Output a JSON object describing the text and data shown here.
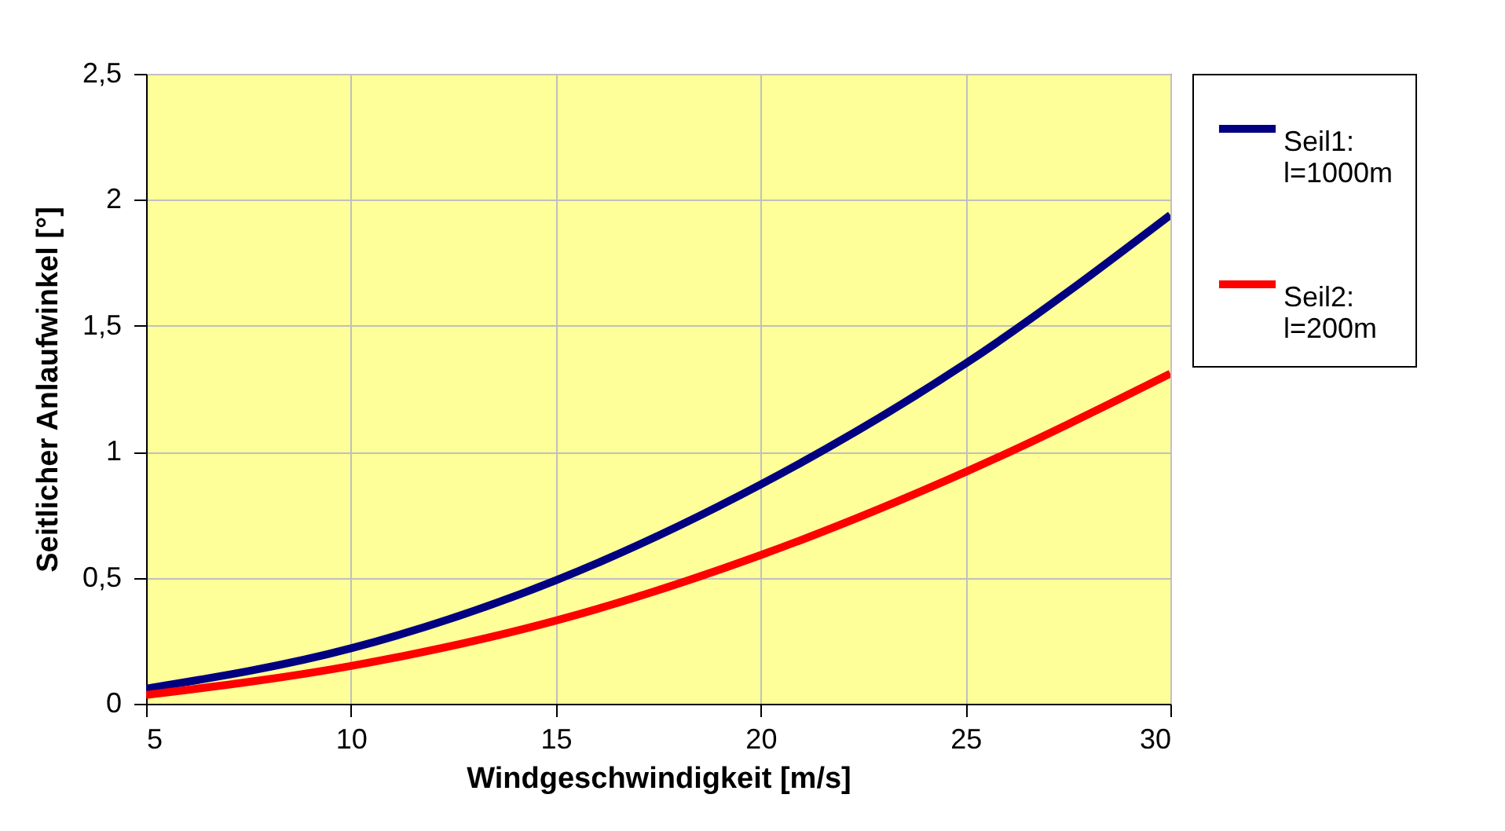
{
  "chart_data": {
    "type": "line",
    "xlabel": "Windgeschwindigkeit [m/s]",
    "ylabel": "Seitlicher Anlaufwinkel [°]",
    "x": [
      5,
      10,
      15,
      20,
      25,
      30
    ],
    "series": [
      {
        "name": "Seil1: l=1000m",
        "color": "#000080",
        "values": [
          0.06,
          0.22,
          0.49,
          0.87,
          1.35,
          1.94
        ]
      },
      {
        "name": "Seil2: l=200m",
        "color": "#ff0000",
        "values": [
          0.035,
          0.15,
          0.33,
          0.59,
          0.92,
          1.31
        ]
      }
    ],
    "xlim": [
      5,
      30
    ],
    "xticks": [
      5,
      10,
      15,
      20,
      25,
      30
    ],
    "ylim": [
      0,
      2.5
    ],
    "yticks": [
      0,
      {
        "value": 0.5,
        "label": "0,5"
      },
      1,
      {
        "value": 1.5,
        "label": "1,5"
      },
      2,
      {
        "value": 2.5,
        "label": "2,5"
      }
    ],
    "grid": true,
    "legend": "right",
    "marker": "none",
    "line_style": "solid"
  }
}
